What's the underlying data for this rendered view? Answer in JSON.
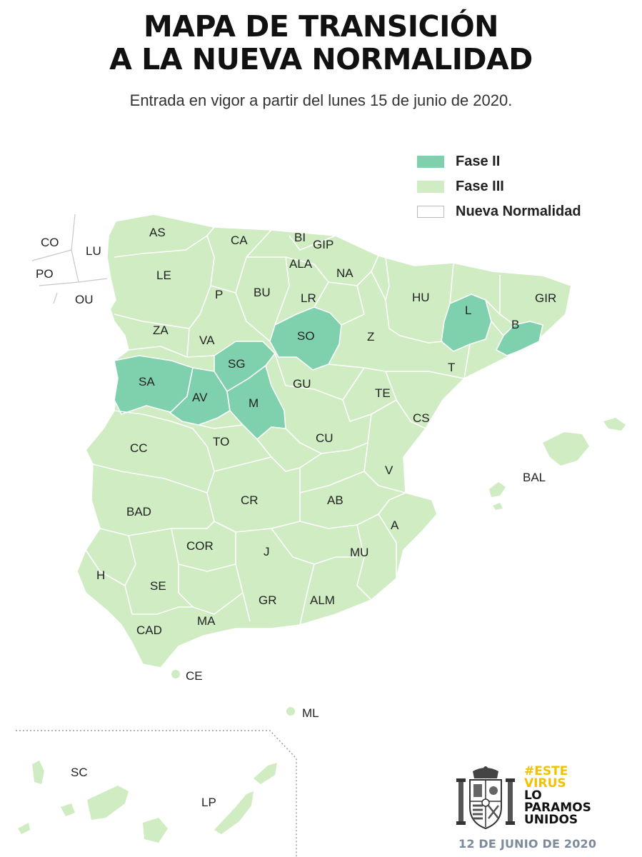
{
  "title": {
    "line1": "MAPA DE TRANSICIÓN",
    "line2": "A LA NUEVA NORMALIDAD"
  },
  "subtitle": "Entrada en vigor a partir del lunes 15 de junio de 2020.",
  "legend": [
    {
      "label": "Fase II",
      "color": "#7fd1ad"
    },
    {
      "label": "Fase III",
      "color": "#cfecc3"
    },
    {
      "label": "Nueva Normalidad",
      "color": "#ffffff"
    }
  ],
  "provinces": {
    "CO": "CO",
    "LU": "LU",
    "PO": "PO",
    "OU": "OU",
    "AS": "AS",
    "CA": "CA",
    "BI": "BI",
    "GIP": "GIP",
    "ALA": "ALA",
    "NA": "NA",
    "LE": "LE",
    "P": "P",
    "BU": "BU",
    "LR": "LR",
    "HU": "HU",
    "L": "L",
    "GIR": "GIR",
    "B": "B",
    "ZA": "ZA",
    "VA": "VA",
    "SO": "SO",
    "Z": "Z",
    "T": "T",
    "SA": "SA",
    "SG": "SG",
    "AV": "AV",
    "M": "M",
    "GU": "GU",
    "TE": "TE",
    "CS": "CS",
    "CC": "CC",
    "TO": "TO",
    "CU": "CU",
    "V": "V",
    "BAL": "BAL",
    "BAD": "BAD",
    "CR": "CR",
    "AB": "AB",
    "A": "A",
    "COR": "COR",
    "J": "J",
    "MU": "MU",
    "H": "H",
    "SE": "SE",
    "GR": "GR",
    "ALM": "ALM",
    "MA": "MA",
    "CAD": "CAD",
    "CE": "CE",
    "ML": "ML",
    "SC": "SC",
    "LP": "LP"
  },
  "government": {
    "slogan": [
      "#ESTE",
      "VIRUS",
      "LO",
      "PARAMOS",
      "UNIDOS"
    ],
    "date": "12 DE JUNIO DE 2020",
    "slogan_color": "#f2c100"
  }
}
